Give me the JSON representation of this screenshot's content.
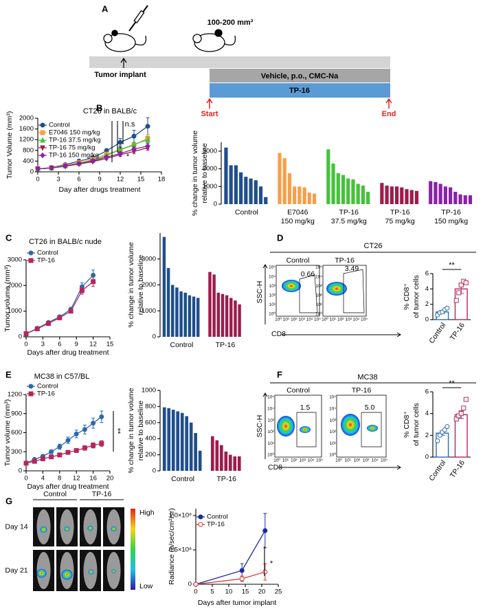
{
  "panel_labels": [
    "A",
    "B",
    "C",
    "D",
    "E",
    "F",
    "G"
  ],
  "schematic": {
    "volume": "100-200 mm³",
    "implant": "Tumor implant",
    "vehicle": "Vehicle, p.o., CMC-Na",
    "treatment": "TP-16",
    "start": "Start",
    "end": "End"
  },
  "flow": [
    {
      "title": "CT26",
      "ylabel": "SSC-H",
      "xlabel": "CD8",
      "axis_ticks": [
        "10⁰",
        "10¹",
        "10²",
        "10³",
        "10⁴",
        "10⁵"
      ],
      "samples": [
        {
          "name": "Control",
          "gate": "0.66"
        },
        {
          "name": "TP-16",
          "gate": "3.49"
        }
      ]
    },
    {
      "title": "MC38",
      "ylabel": "SSC-H",
      "xlabel": "CD8",
      "axis_ticks": [
        "10⁰",
        "10¹",
        "10²",
        "10³",
        "10⁴",
        "10⁵"
      ],
      "samples": [
        {
          "name": "Control",
          "gate": "1.5"
        },
        {
          "name": "TP-16",
          "gate": "5.0"
        }
      ]
    }
  ],
  "imaging": {
    "groups": [
      "Control",
      "TP-16"
    ],
    "days": [
      "Day 14",
      "Day 21"
    ],
    "scale": [
      "High",
      "Low"
    ]
  },
  "chart_data": [
    {
      "type": "line",
      "title": "CT26 in BALB/c",
      "xlabel": "Day after drugs treatment",
      "ylabel": "Tumor Volume (mm³)",
      "xlim": [
        0,
        18
      ],
      "xticks": [
        0,
        3,
        6,
        9,
        12,
        15,
        18
      ],
      "ylim": [
        0,
        2000
      ],
      "yticks": [
        0,
        400,
        800,
        1200,
        1600,
        2000
      ],
      "legend": "upper left",
      "x": [
        0,
        2,
        4,
        6,
        8,
        10,
        12,
        14,
        16
      ],
      "series": [
        {
          "name": "Control",
          "color": "#1f4e8c",
          "marker": "circle",
          "values": [
            110,
            160,
            270,
            400,
            520,
            780,
            1100,
            1330,
            1700
          ],
          "errors": [
            10,
            20,
            40,
            50,
            60,
            90,
            140,
            220,
            320
          ]
        },
        {
          "name": "E7046 150 mg/kg",
          "color": "#f5a04a",
          "marker": "square",
          "values": [
            110,
            150,
            240,
            340,
            460,
            660,
            820,
            1000,
            1250
          ],
          "errors": [
            10,
            15,
            25,
            35,
            45,
            60,
            80,
            100,
            130
          ]
        },
        {
          "name": "TP-16 37.5 mg/kg",
          "color": "#45c23a",
          "marker": "triangle",
          "values": [
            110,
            140,
            220,
            320,
            430,
            610,
            830,
            1020,
            1200
          ],
          "errors": [
            10,
            15,
            25,
            30,
            40,
            55,
            70,
            90,
            110
          ]
        },
        {
          "name": "TP-16 75 mg/kg",
          "color": "#9e1c4c",
          "marker": "down-triangle",
          "values": [
            110,
            140,
            210,
            290,
            380,
            500,
            640,
            760,
            900
          ],
          "errors": [
            10,
            15,
            20,
            30,
            35,
            45,
            60,
            70,
            90
          ]
        },
        {
          "name": "TP-16 150 mg/kg",
          "color": "#8a22a6",
          "marker": "diamond",
          "values": [
            110,
            140,
            220,
            300,
            410,
            550,
            680,
            850,
            960
          ],
          "errors": [
            10,
            15,
            20,
            30,
            40,
            50,
            60,
            80,
            100
          ]
        }
      ],
      "annotations": [
        "n.s",
        "*",
        "*"
      ]
    },
    {
      "type": "waterfall",
      "ylabel": [
        "% change in tumor volume",
        "relative to baseline"
      ],
      "ylim": [
        0,
        3500
      ],
      "yticks": [
        0,
        1000,
        2000,
        3000
      ],
      "groups": [
        {
          "label": [
            "Control"
          ],
          "color": "#1f4e8c",
          "values": [
            3200,
            2200,
            2200,
            1800,
            1550,
            1450,
            1350,
            1000,
            400
          ]
        },
        {
          "label": [
            "E7046",
            "150 mg/kg"
          ],
          "color": "#f5a04a",
          "values": [
            2900,
            2600,
            1750,
            1000,
            1000,
            950,
            650,
            600
          ]
        },
        {
          "label": [
            "TP-16",
            "37.5 mg/kg"
          ],
          "color": "#45c23a",
          "values": [
            3100,
            2300,
            1750,
            1650,
            1450,
            1400,
            1150,
            1050,
            700
          ]
        },
        {
          "label": [
            "TP-16",
            "75 mg/kg"
          ],
          "color": "#9e1c4c",
          "values": [
            1200,
            1050,
            1000,
            1000,
            950,
            850,
            800,
            750
          ]
        },
        {
          "label": [
            "TP-16",
            "150 mg/kg"
          ],
          "color": "#8a22a6",
          "values": [
            1300,
            1250,
            1150,
            1000,
            950,
            700,
            550,
            500,
            500
          ]
        }
      ]
    },
    {
      "type": "line",
      "title": "CT26 in BALB/c nude",
      "xlabel": "Days after drug treatment",
      "ylabel": "Tumor volume (mm³)",
      "xlim": [
        0,
        15
      ],
      "xticks": [
        0,
        3,
        6,
        9,
        12,
        15
      ],
      "ylim": [
        0,
        3000
      ],
      "yticks": [
        0,
        1000,
        2000,
        3000
      ],
      "legend": "upper left",
      "x": [
        0,
        2,
        4,
        6,
        8,
        10,
        12
      ],
      "series": [
        {
          "name": "Control",
          "color": "#2a6ab0",
          "marker": "circle",
          "values": [
            120,
            330,
            560,
            780,
            1070,
            1950,
            2400
          ],
          "errors": [
            20,
            30,
            50,
            60,
            80,
            150,
            200
          ]
        },
        {
          "name": "TP-16",
          "color": "#b5265c",
          "marker": "square",
          "values": [
            120,
            310,
            520,
            740,
            1000,
            1800,
            2150
          ],
          "errors": [
            20,
            30,
            50,
            60,
            70,
            140,
            180
          ]
        }
      ]
    },
    {
      "type": "waterfall",
      "ylabel": [
        "% change in tumor volume",
        "relative to baseline"
      ],
      "ylim": [
        0,
        4000
      ],
      "yticks": [
        0,
        1000,
        2000,
        3000
      ],
      "groups": [
        {
          "label": [
            "Control"
          ],
          "color": "#1f4e8c",
          "values": [
            3850,
            2650,
            2000,
            1900,
            1750,
            1700,
            1600,
            1550,
            1500
          ]
        },
        {
          "label": [
            "TP-16"
          ],
          "color": "#9e1c4c",
          "values": [
            2500,
            2400,
            1700,
            1650,
            1600,
            1500,
            1400,
            1250
          ]
        }
      ]
    },
    {
      "type": "dotplot",
      "ylabel": [
        "% CD8⁺",
        "of tumor cells"
      ],
      "ylim": [
        0,
        6
      ],
      "yticks": [
        0,
        2,
        4,
        6
      ],
      "categories": [
        "Control",
        "TP-16"
      ],
      "colors": [
        "#2a6ab0",
        "#b5265c"
      ],
      "values": [
        1.0,
        4.0
      ],
      "errors": [
        0.2,
        0.6
      ],
      "points": [
        [
          0.6,
          0.9,
          1.0,
          1.3,
          1.5
        ],
        [
          2.5,
          3.5,
          4.5,
          5.0,
          4.8
        ]
      ],
      "annotation": "**"
    },
    {
      "type": "line",
      "title": "MC38 in C57/BL",
      "xlabel": "Days after drug treatment",
      "ylabel": "Tumor volume (mm³)",
      "xlim": [
        0,
        20
      ],
      "xticks": [
        0,
        4,
        8,
        12,
        16,
        20
      ],
      "ylim": [
        0,
        1200
      ],
      "yticks": [
        0,
        300,
        600,
        900,
        1200
      ],
      "legend": "upper left",
      "x": [
        0,
        2,
        4,
        6,
        8,
        10,
        12,
        14,
        16,
        18
      ],
      "series": [
        {
          "name": "Control",
          "color": "#2a6ab0",
          "marker": "circle",
          "values": [
            120,
            180,
            230,
            300,
            380,
            480,
            580,
            650,
            750,
            850
          ],
          "errors": [
            10,
            20,
            25,
            30,
            40,
            50,
            60,
            70,
            80,
            90
          ]
        },
        {
          "name": "TP-16",
          "color": "#b5265c",
          "marker": "square",
          "values": [
            120,
            150,
            190,
            220,
            250,
            290,
            320,
            360,
            400,
            430
          ],
          "errors": [
            10,
            15,
            20,
            20,
            25,
            30,
            30,
            35,
            40,
            45
          ]
        }
      ],
      "annotations": [
        "**"
      ]
    },
    {
      "type": "waterfall",
      "ylabel": [
        "% change in tumor volume",
        "relative to baseline"
      ],
      "ylim": [
        0,
        1000
      ],
      "yticks": [
        0,
        200,
        400,
        600,
        800,
        1000
      ],
      "groups": [
        {
          "label": [
            "Control"
          ],
          "color": "#1f4e8c",
          "values": [
            790,
            780,
            760,
            740,
            720,
            680,
            600,
            470,
            250
          ]
        },
        {
          "label": [
            "TP-16"
          ],
          "color": "#9e1c4c",
          "values": [
            430,
            380,
            320,
            240,
            200,
            180,
            180
          ]
        }
      ]
    },
    {
      "type": "dotplot",
      "ylabel": [
        "% CD8⁺",
        "of tumor cells"
      ],
      "ylim": [
        0,
        6
      ],
      "yticks": [
        0,
        2,
        4,
        6
      ],
      "categories": [
        "Control",
        "TP-16"
      ],
      "colors": [
        "#2a6ab0",
        "#b5265c"
      ],
      "values": [
        2.2,
        3.9
      ],
      "errors": [
        0.2,
        0.35
      ],
      "points": [
        [
          1.5,
          2.0,
          2.3,
          2.5,
          2.8
        ],
        [
          3.5,
          3.8,
          4.0,
          4.5,
          5.3
        ]
      ],
      "annotation": "**"
    },
    {
      "type": "line",
      "xlabel": "Days after tumor implant",
      "ylabel": "Radiance (p/sec/cm²/sr)",
      "xlim": [
        0,
        25
      ],
      "xticks": [
        0,
        5,
        10,
        15,
        20,
        25
      ],
      "ylim": [
        0,
        110000000
      ],
      "yticks": [
        0,
        {
          "value": 50000000,
          "label": "0.5×10⁸"
        },
        {
          "value": 100000000,
          "label": "1.0×10⁸"
        }
      ],
      "legend": "upper left",
      "x": [
        0,
        14,
        21
      ],
      "series": [
        {
          "name": "Control",
          "color": "#1a2aa0",
          "marker": "circle",
          "values": [
            0,
            20000000,
            78000000
          ],
          "errors": [
            null,
            10000000,
            25000000
          ]
        },
        {
          "name": "TP-16",
          "color": "#d9312f",
          "marker": "open-circle",
          "values": [
            0,
            8000000,
            18000000
          ],
          "errors": [
            null,
            4000000,
            12000000
          ]
        }
      ],
      "annotations": [
        "*"
      ]
    }
  ]
}
